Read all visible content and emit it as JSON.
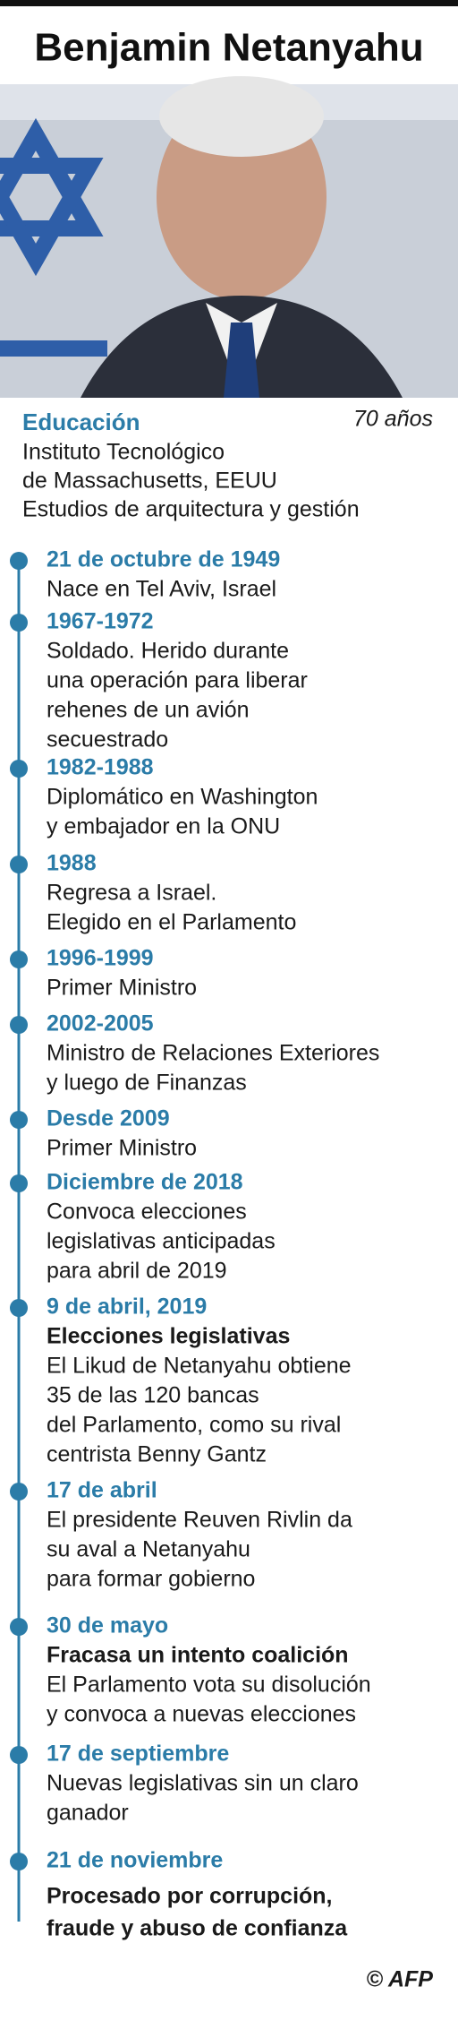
{
  "header": {
    "title": "Benjamin Netanyahu"
  },
  "education": {
    "label": "Educación",
    "age": "70 años",
    "lines": [
      "Instituto Tecnológico",
      "de Massachusetts, EEUU",
      "Estudios de arquitectura y gestión"
    ]
  },
  "timeline": [
    {
      "date": "21 de octubre de 1949",
      "lines": [
        "Nace en Tel Aviv, Israel"
      ]
    },
    {
      "date": "1967-1972",
      "lines": [
        "Soldado. Herido durante",
        "una operación para liberar",
        "rehenes de un avión",
        "secuestrado"
      ]
    },
    {
      "date": "1982-1988",
      "lines": [
        "Diplomático en Washington",
        "y embajador en la ONU"
      ]
    },
    {
      "date": "1988",
      "lines": [
        "Regresa a Israel.",
        "Elegido en el Parlamento"
      ]
    },
    {
      "date": "1996-1999",
      "lines": [
        "Primer Ministro"
      ]
    },
    {
      "date": "2002-2005",
      "lines": [
        "Ministro de Relaciones Exteriores",
        "y luego de Finanzas"
      ]
    },
    {
      "date": "Desde 2009",
      "lines": [
        "Primer Ministro"
      ]
    },
    {
      "date": "Diciembre de 2018",
      "lines": [
        "Convoca elecciones",
        "legislativas anticipadas",
        "para abril de 2019"
      ]
    },
    {
      "date": "9 de abril, 2019",
      "subtitle": [
        "Elecciones legislativas"
      ],
      "lines": [
        "El Likud de Netanyahu obtiene",
        "35 de las 120 bancas",
        "del Parlamento, como su rival",
        "centrista Benny Gantz"
      ]
    },
    {
      "date": "17 de abril",
      "lines": [
        "El presidente Reuven Rivlin da",
        "su aval a Netanyahu",
        "para formar gobierno"
      ]
    },
    {
      "date": "30 de mayo",
      "subtitle": [
        "Fracasa un intento coalición"
      ],
      "lines": [
        "El Parlamento vota su disolución",
        "y convoca a nuevas elecciones"
      ]
    },
    {
      "date": "17 de septiembre",
      "lines": [
        "Nuevas legislativas sin un claro",
        "ganador"
      ]
    },
    {
      "date": "21 de noviembre",
      "subtitle": [
        "Procesado por corrupción,",
        "fraude y abuso de confianza"
      ]
    }
  ],
  "credit": "© AFP"
}
